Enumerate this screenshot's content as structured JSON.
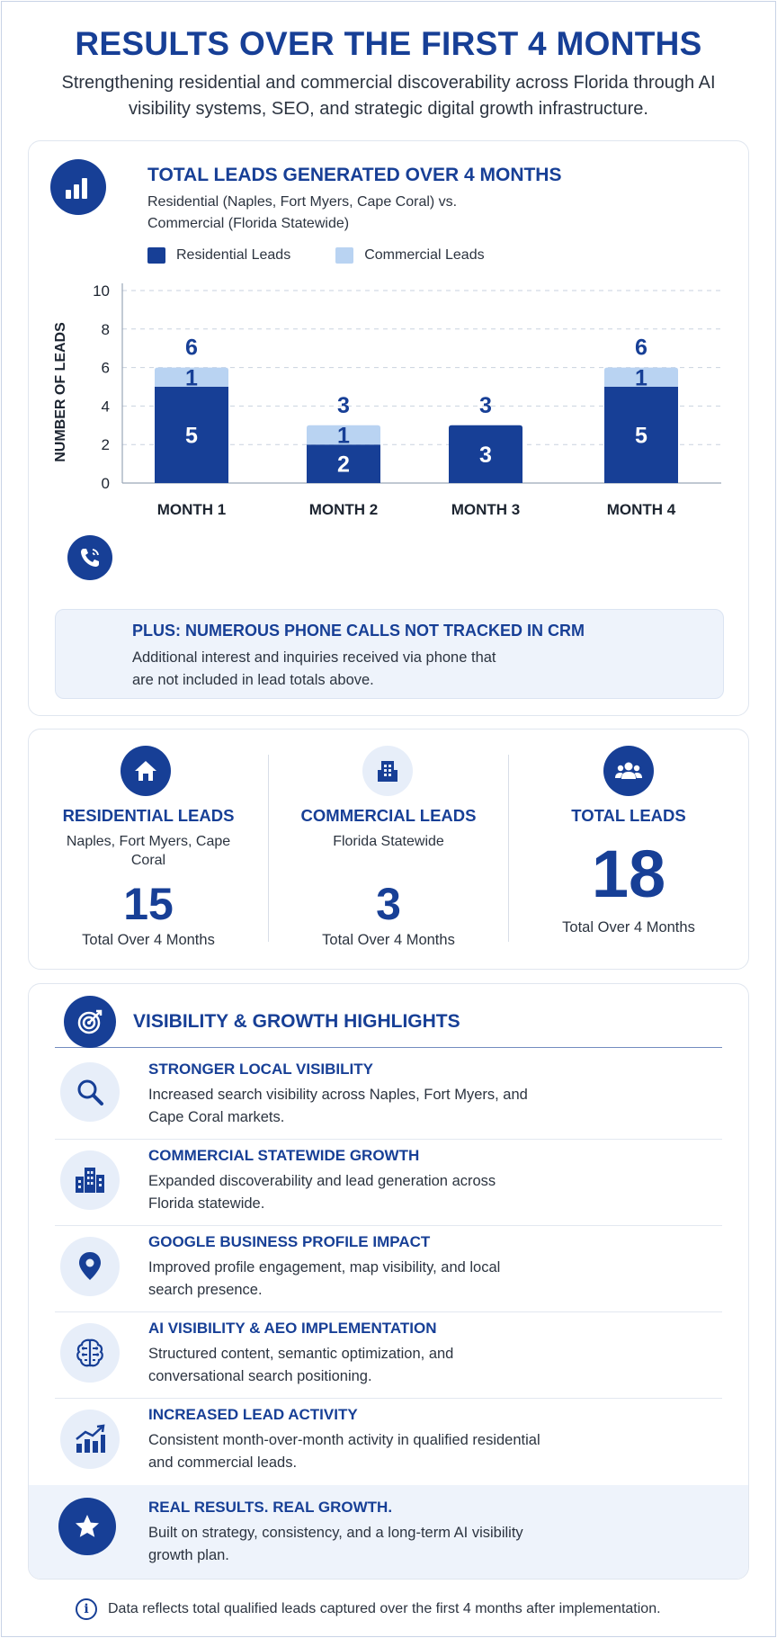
{
  "header": {
    "title": "RESULTS OVER THE FIRST 4 MONTHS",
    "subtitle": "Strengthening residential and commercial discoverability across Florida through AI visibility systems, SEO, and strategic digital growth infrastructure."
  },
  "chart_card": {
    "icon": "bar-chart-icon",
    "title": "TOTAL LEADS GENERATED OVER 4 MONTHS",
    "subtitle": "Residential (Naples, Fort Myers, Cape Coral) vs. Commercial (Florida Statewide)"
  },
  "chart_data": {
    "type": "bar",
    "stacked": true,
    "title": "TOTAL LEADS GENERATED OVER 4 MONTHS",
    "subtitle": "Residential (Naples, Fort Myers, Cape Coral) vs. Commercial (Florida Statewide)",
    "categories": [
      "MONTH 1",
      "MONTH 2",
      "MONTH 3",
      "MONTH 4"
    ],
    "series": [
      {
        "name": "Residential Leads",
        "values": [
          5,
          2,
          3,
          5
        ],
        "color": "#173f96"
      },
      {
        "name": "Commercial Leads",
        "values": [
          1,
          1,
          0,
          1
        ],
        "color": "#b9d3f2"
      }
    ],
    "totals": [
      6,
      3,
      3,
      6
    ],
    "xlabel": "",
    "ylabel": "NUMBER OF LEADS",
    "ylim": [
      0,
      10
    ],
    "yticks": [
      0,
      2,
      4,
      6,
      8,
      10
    ],
    "grid": true,
    "legend_position": "top-left"
  },
  "callout": {
    "icon": "phone-icon",
    "title": "PLUS: NUMEROUS PHONE CALLS NOT TRACKED IN CRM",
    "text": "Additional interest and inquiries received via phone that are not included in lead totals above."
  },
  "stats": [
    {
      "icon": "house-icon",
      "label": "RESIDENTIAL LEADS",
      "sub": "Naples, Fort Myers, Cape Coral",
      "value": "15",
      "foot": "Total Over 4 Months"
    },
    {
      "icon": "building-icon",
      "label": "COMMERCIAL LEADS",
      "sub": "Florida Statewide",
      "value": "3",
      "foot": "Total Over 4 Months"
    },
    {
      "icon": "group-icon",
      "label": "TOTAL LEADS",
      "sub": "",
      "value": "18",
      "foot": "Total Over 4 Months"
    }
  ],
  "highlights": {
    "icon": "target-icon",
    "title": "VISIBILITY & GROWTH HIGHLIGHTS",
    "items": [
      {
        "icon": "search-icon",
        "title": "STRONGER LOCAL VISIBILITY",
        "text": "Increased search visibility across Naples, Fort Myers, and Cape Coral markets."
      },
      {
        "icon": "buildings-icon",
        "title": "COMMERCIAL STATEWIDE GROWTH",
        "text": "Expanded discoverability and lead generation across Florida statewide."
      },
      {
        "icon": "map-pin-icon",
        "title": "GOOGLE BUSINESS PROFILE IMPACT",
        "text": "Improved profile engagement, map visibility, and local search presence."
      },
      {
        "icon": "ai-brain-icon",
        "title": "AI VISIBILITY & AEO IMPLEMENTATION",
        "text": "Structured content, semantic optimization, and conversational search positioning."
      },
      {
        "icon": "growth-chart-icon",
        "title": "INCREASED LEAD ACTIVITY",
        "text": "Consistent month-over-month activity in qualified residential and commercial leads."
      }
    ],
    "final": {
      "icon": "star-icon",
      "title": "REAL RESULTS. REAL GROWTH.",
      "text": "Built on strategy, consistency, and a long-term AI visibility growth plan."
    }
  },
  "footnote": {
    "icon": "info-icon",
    "text": "Data reflects total qualified leads captured over the first 4 months after implementation."
  }
}
